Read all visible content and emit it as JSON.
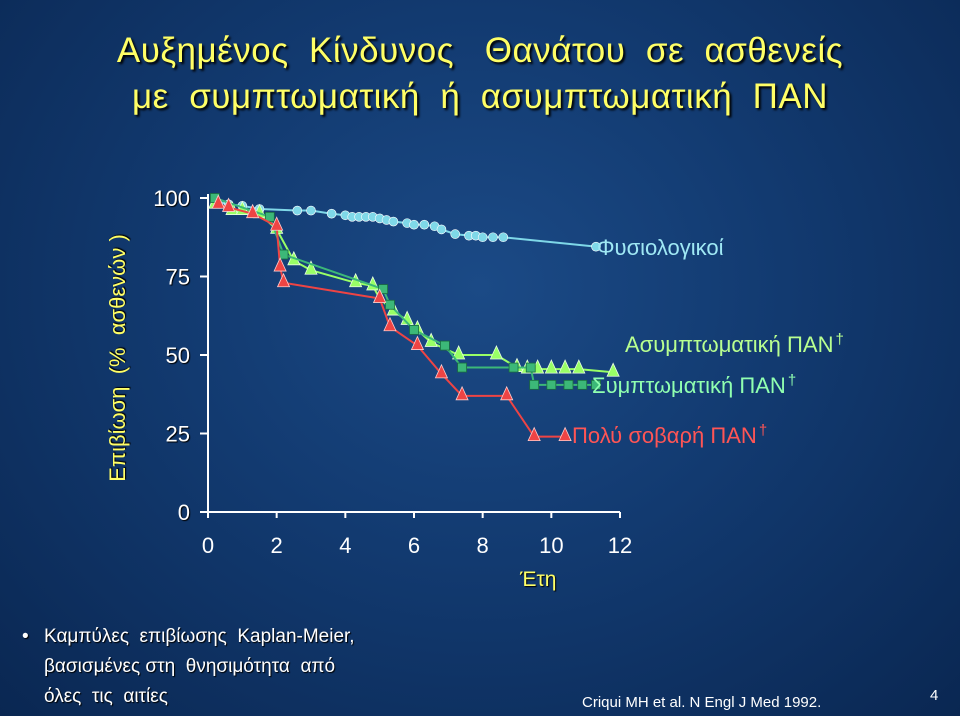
{
  "slide": {
    "title_line1": "Αυξημένος  Κίνδυνος   Θανάτου  σε  ασθενείς",
    "title_line2": "με  συμπτωματική  ή  ασυμπτωματική  ΠΑΝ",
    "note_bullet": "•",
    "note_lines": [
      "Καμπύλες  επιβίωσης  Kaplan-Meier,",
      "βασισμένες στη  θνησιμότητα  από",
      "όλες  τις  αιτίες"
    ],
    "citation": "Criqui MH et al. N Engl J Med 1992.",
    "page_number": "4"
  },
  "colors": {
    "background": "#123a70",
    "title": "#ffff66",
    "axis_text": "#ffffff",
    "physiological": "#7fd8e8",
    "asymptomatic": "#99ff66",
    "symptomatic": "#3cb878",
    "severe": "#ee4444",
    "severe_label": "#ff5555"
  },
  "chart_data": {
    "type": "line",
    "subtype": "kaplan-meier step curves",
    "ylabel": "Επιβίωση  (%  ασθενών )",
    "xlabel": "Έτη",
    "xlim": [
      0,
      12
    ],
    "ylim": [
      0,
      100
    ],
    "x_ticks": [
      "0",
      "2",
      "4",
      "6",
      "8",
      "10",
      "12"
    ],
    "y_ticks": [
      "0",
      "25",
      "50",
      "75",
      "100"
    ],
    "series": [
      {
        "name": "Φυσιολογικοί",
        "label_marker": "",
        "marker": "circle",
        "color": "#7fd8e8",
        "x": [
          0.2,
          0.6,
          1.0,
          1.5,
          2.6,
          3.0,
          3.6,
          4.0,
          4.2,
          4.4,
          4.6,
          4.8,
          5.0,
          5.2,
          5.4,
          5.8,
          6.0,
          6.3,
          6.6,
          6.8,
          7.2,
          7.6,
          7.8,
          8.0,
          8.3,
          8.6,
          11.3
        ],
        "y": [
          99,
          98,
          97.5,
          96.5,
          96,
          96,
          95,
          94.5,
          94,
          94,
          94,
          94,
          93.5,
          93,
          92.5,
          92,
          91.5,
          91.5,
          91,
          90,
          88.5,
          88,
          88,
          87.5,
          87.5,
          87.5,
          84.5
        ]
      },
      {
        "name": "Ασυμπτωματική ΠΑΝ",
        "label_marker": "†",
        "marker": "triangle",
        "color": "#99ff66",
        "x": [
          0.2,
          0.7,
          1.0,
          1.5,
          2.0,
          2.5,
          3.0,
          4.3,
          4.8,
          5.0,
          5.4,
          5.8,
          6.1,
          6.5,
          7.3,
          8.4,
          9.0,
          9.3,
          9.6,
          10.0,
          10.4,
          10.8,
          11.8
        ],
        "y": [
          98,
          96,
          96,
          95,
          90,
          80,
          77,
          73,
          72,
          68,
          64,
          61,
          58,
          54,
          50,
          50,
          46,
          45.5,
          45.5,
          45.5,
          45.5,
          45.5,
          44.5
        ]
      },
      {
        "name": "Συμπτωματική ΠΑΝ",
        "label_marker": "†",
        "marker": "square",
        "color": "#3cb878",
        "x": [
          0.2,
          1.8,
          2.2,
          5.1,
          5.3,
          6.0,
          6.9,
          7.4,
          8.9,
          9.4,
          9.5,
          10.0,
          10.5,
          10.9,
          11.3
        ],
        "y": [
          100,
          94,
          82,
          71,
          66,
          58,
          53,
          46,
          46,
          46,
          40.5,
          40.5,
          40.5,
          40.5,
          40.5
        ]
      },
      {
        "name": "Πολύ σοβαρή ΠΑΝ",
        "label_marker": "†",
        "marker": "triangle",
        "color": "#ee4444",
        "x": [
          0.3,
          0.6,
          1.3,
          2.0,
          2.1,
          2.2,
          5.0,
          5.3,
          6.1,
          6.8,
          7.4,
          8.7,
          9.5,
          10.4
        ],
        "y": [
          98,
          97,
          95,
          91,
          78,
          73,
          68,
          59,
          53,
          44,
          37,
          37,
          24,
          24
        ]
      }
    ],
    "legend": "inline labels at right end of curves"
  }
}
